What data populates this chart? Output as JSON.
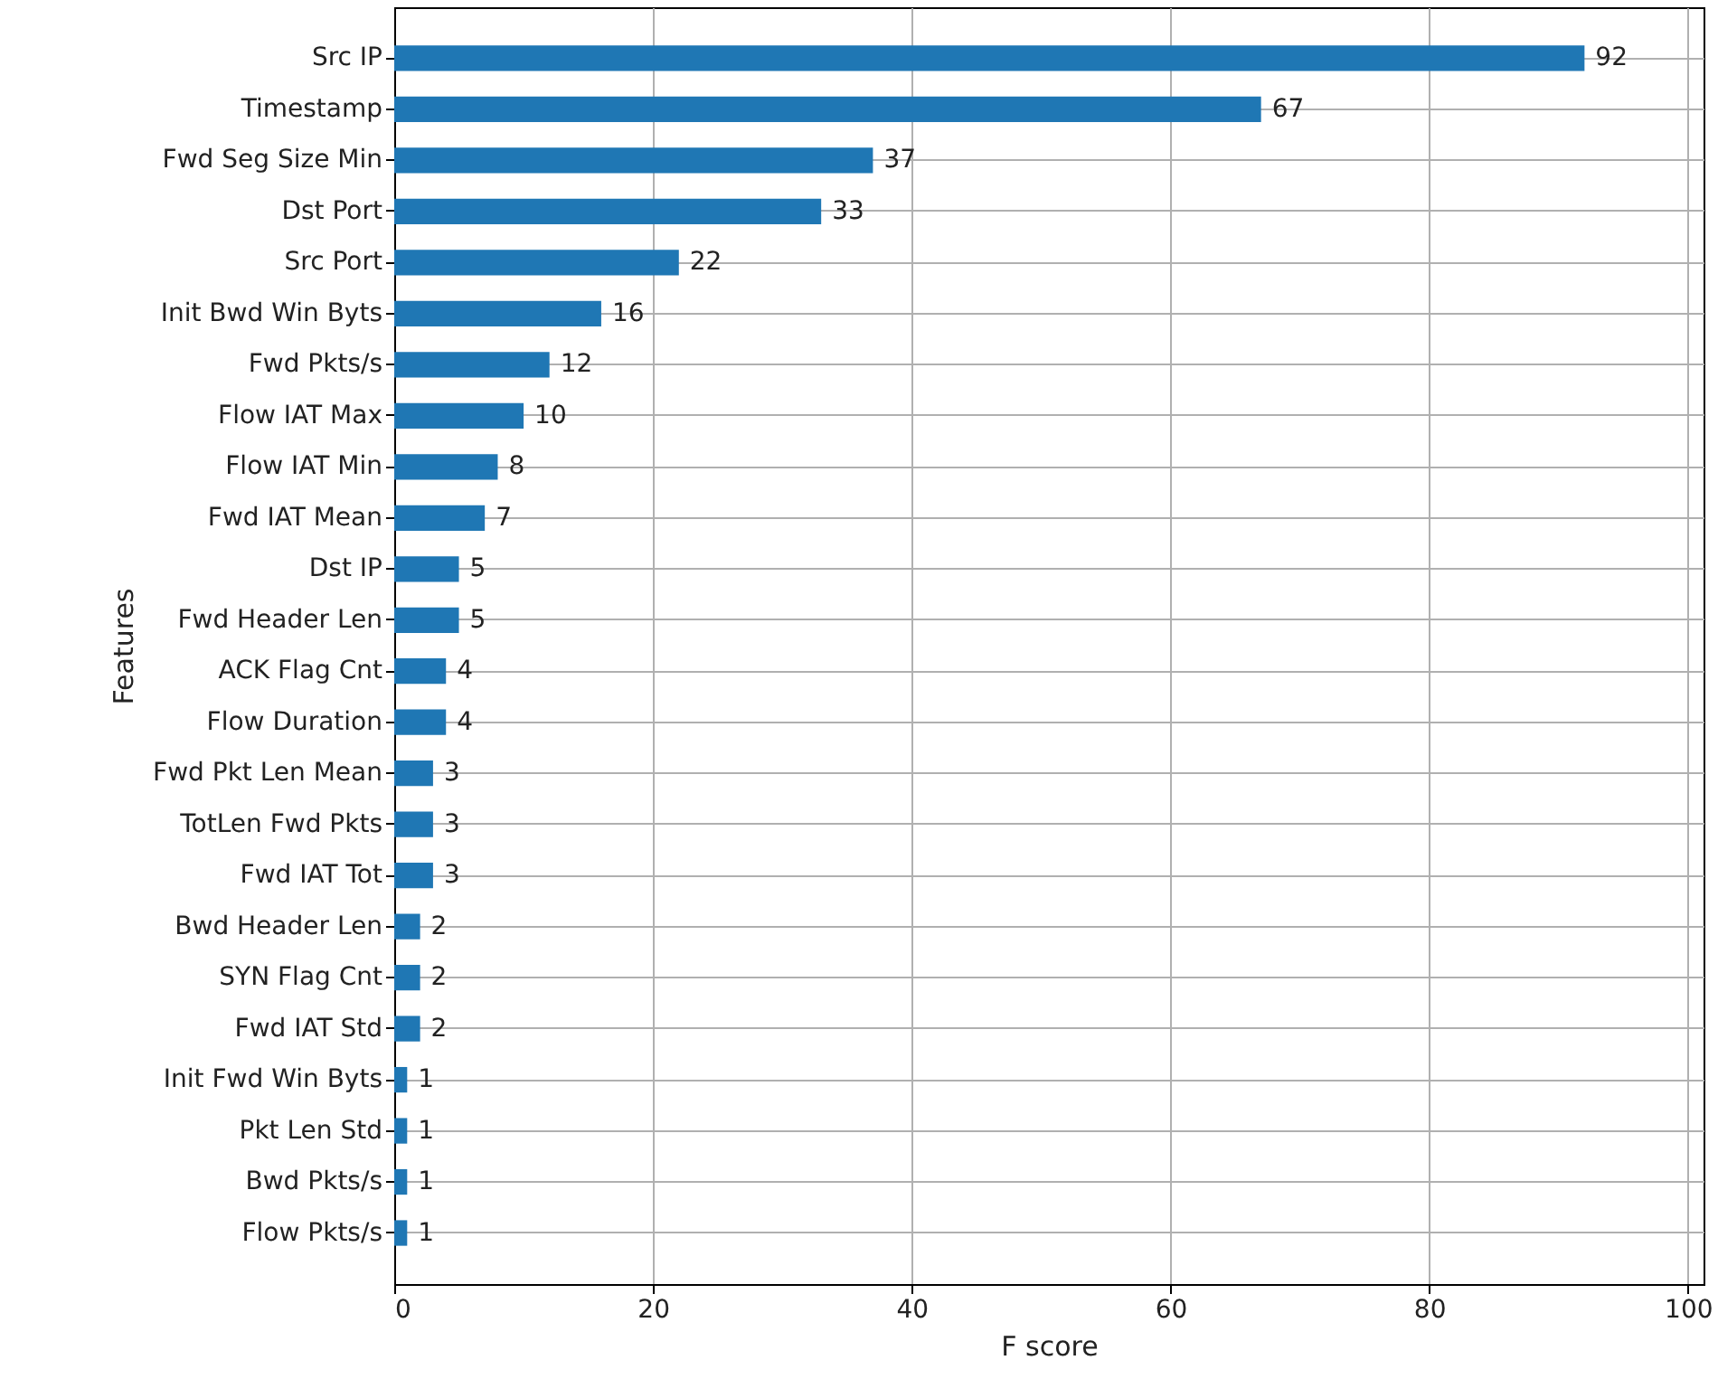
{
  "chart_data": {
    "type": "bar",
    "orientation": "horizontal",
    "xlabel": "F score",
    "ylabel": "Features",
    "categories": [
      "Src IP",
      "Timestamp",
      "Fwd Seg Size Min",
      "Dst Port",
      "Src Port",
      "Init Bwd Win Byts",
      "Fwd Pkts/s",
      "Flow IAT Max",
      "Flow IAT Min",
      "Fwd IAT Mean",
      "Dst IP",
      "Fwd Header Len",
      "ACK Flag Cnt",
      "Flow Duration",
      "Fwd Pkt Len Mean",
      "TotLen Fwd Pkts",
      "Fwd IAT Tot",
      "Bwd Header Len",
      "SYN Flag Cnt",
      "Fwd IAT Std",
      "Init Fwd Win Byts",
      "Pkt Len Std",
      "Bwd Pkts/s",
      "Flow Pkts/s"
    ],
    "values": [
      92,
      67,
      37,
      33,
      22,
      16,
      12,
      10,
      8,
      7,
      5,
      5,
      4,
      4,
      3,
      3,
      3,
      2,
      2,
      2,
      1,
      1,
      1,
      1
    ],
    "color": "#1f77b4",
    "xlim": [
      0,
      101.2
    ],
    "xticks": [
      0,
      20,
      40,
      60,
      80,
      100
    ],
    "grid": true,
    "data_labels": true
  }
}
